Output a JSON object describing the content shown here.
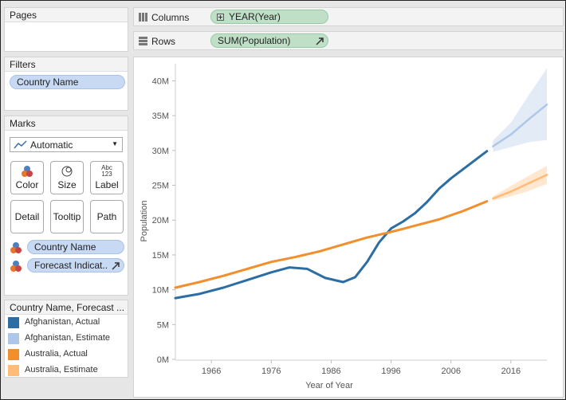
{
  "pages": {
    "title": "Pages"
  },
  "filters": {
    "title": "Filters",
    "pill": "Country Name"
  },
  "columns": {
    "label": "Columns",
    "pill": "YEAR(Year)"
  },
  "rows": {
    "label": "Rows",
    "pill": "SUM(Population)"
  },
  "marks": {
    "title": "Marks",
    "dropdown": "Automatic",
    "buttons": {
      "color": "Color",
      "size": "Size",
      "label": "Label",
      "detail": "Detail",
      "tooltip": "Tooltip",
      "path": "Path"
    },
    "label_icon_top": "Abc",
    "label_icon_bottom": "123",
    "fields": [
      "Country Name",
      "Forecast Indicat.."
    ]
  },
  "legend": {
    "title": "Country Name, Forecast ...",
    "items": [
      {
        "label": "Afghanistan, Actual",
        "color": "#2c6ea3"
      },
      {
        "label": "Afghanistan, Estimate",
        "color": "#aec7e8"
      },
      {
        "label": "Australia, Actual",
        "color": "#f28e2b"
      },
      {
        "label": "Australia, Estimate",
        "color": "#ffbb78"
      }
    ]
  },
  "chart_data": {
    "type": "line",
    "xlabel": "Year of Year",
    "ylabel": "Population",
    "xlim": [
      1960,
      2022
    ],
    "ylim": [
      0,
      42000000
    ],
    "x_ticks": [
      1966,
      1976,
      1986,
      1996,
      2006,
      2016
    ],
    "y_ticks": [
      {
        "v": 0,
        "label": "0M"
      },
      {
        "v": 5000000,
        "label": "5M"
      },
      {
        "v": 10000000,
        "label": "10M"
      },
      {
        "v": 15000000,
        "label": "15M"
      },
      {
        "v": 20000000,
        "label": "20M"
      },
      {
        "v": 25000000,
        "label": "25M"
      },
      {
        "v": 30000000,
        "label": "30M"
      },
      {
        "v": 35000000,
        "label": "35M"
      },
      {
        "v": 40000000,
        "label": "40M"
      }
    ],
    "series": [
      {
        "name": "Afghanistan, Actual",
        "color": "#2c6ea3",
        "points": [
          [
            1960,
            8800000
          ],
          [
            1964,
            9400000
          ],
          [
            1968,
            10300000
          ],
          [
            1972,
            11400000
          ],
          [
            1976,
            12500000
          ],
          [
            1979,
            13200000
          ],
          [
            1982,
            13000000
          ],
          [
            1985,
            11700000
          ],
          [
            1988,
            11100000
          ],
          [
            1990,
            11800000
          ],
          [
            1992,
            14000000
          ],
          [
            1994,
            16800000
          ],
          [
            1996,
            18800000
          ],
          [
            1998,
            19800000
          ],
          [
            2000,
            21000000
          ],
          [
            2002,
            22600000
          ],
          [
            2004,
            24500000
          ],
          [
            2006,
            26000000
          ],
          [
            2008,
            27300000
          ],
          [
            2010,
            28600000
          ],
          [
            2012,
            29900000
          ]
        ]
      },
      {
        "name": "Australia, Actual",
        "color": "#f28e2b",
        "points": [
          [
            1960,
            10300000
          ],
          [
            1964,
            11100000
          ],
          [
            1968,
            12000000
          ],
          [
            1972,
            13000000
          ],
          [
            1976,
            14000000
          ],
          [
            1980,
            14700000
          ],
          [
            1984,
            15500000
          ],
          [
            1988,
            16500000
          ],
          [
            1992,
            17500000
          ],
          [
            1996,
            18300000
          ],
          [
            2000,
            19200000
          ],
          [
            2004,
            20100000
          ],
          [
            2008,
            21300000
          ],
          [
            2012,
            22700000
          ]
        ]
      },
      {
        "name": "Afghanistan, Estimate",
        "color": "#aec7e8",
        "points": [
          [
            2013,
            30600000
          ],
          [
            2016,
            32300000
          ],
          [
            2019,
            34500000
          ],
          [
            2022,
            36600000
          ]
        ],
        "band_upper": [
          [
            2013,
            31400000
          ],
          [
            2016,
            34000000
          ],
          [
            2019,
            38000000
          ],
          [
            2022,
            41800000
          ]
        ],
        "band_lower": [
          [
            2013,
            29800000
          ],
          [
            2016,
            30500000
          ],
          [
            2019,
            31200000
          ],
          [
            2022,
            31500000
          ]
        ]
      },
      {
        "name": "Australia, Estimate",
        "color": "#ffbb78",
        "points": [
          [
            2013,
            23100000
          ],
          [
            2016,
            24100000
          ],
          [
            2019,
            25300000
          ],
          [
            2022,
            26500000
          ]
        ],
        "band_upper": [
          [
            2013,
            23400000
          ],
          [
            2016,
            24900000
          ],
          [
            2019,
            26400000
          ],
          [
            2022,
            27800000
          ]
        ],
        "band_lower": [
          [
            2013,
            22800000
          ],
          [
            2016,
            23400000
          ],
          [
            2019,
            24200000
          ],
          [
            2022,
            25200000
          ]
        ]
      }
    ]
  }
}
